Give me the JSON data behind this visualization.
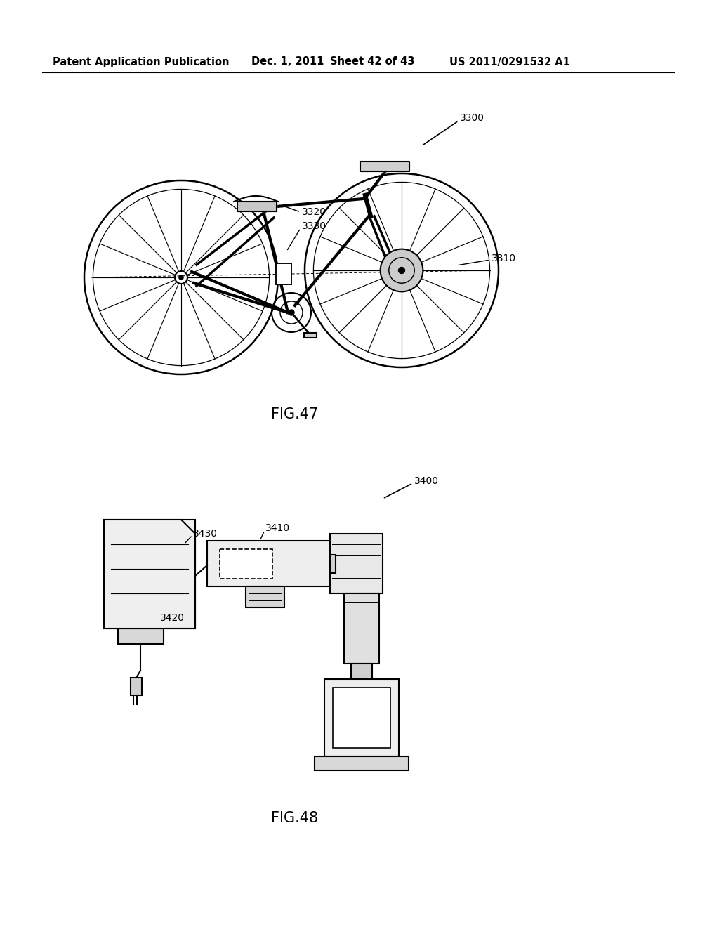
{
  "bg_color": "#ffffff",
  "header_text": "Patent Application Publication",
  "header_date": "Dec. 1, 2011",
  "header_sheet": "Sheet 42 of 43",
  "header_patent": "US 2011/0291532 A1",
  "fig47_label": "FIG.47",
  "fig48_label": "FIG.48",
  "label_3300": "3300",
  "label_3310": "3310",
  "label_3320": "3320",
  "label_3330": "3330",
  "label_3400": "3400",
  "label_3410": "3410",
  "label_3420": "3420",
  "label_3430": "3430",
  "line_color": "#000000",
  "line_width": 1.5,
  "font_size_header": 10.5,
  "font_size_label": 10,
  "font_size_fig": 15
}
